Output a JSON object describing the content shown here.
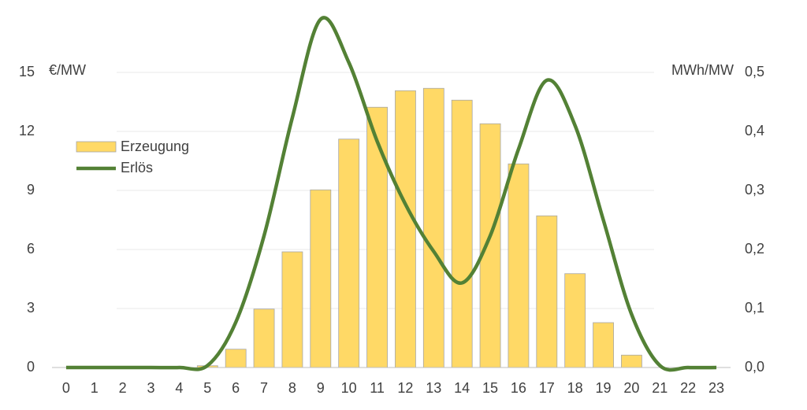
{
  "chart_data": {
    "type": "bar-line",
    "y_label": "€/MW",
    "y2_label": "MWh/MW",
    "categories": [
      "0",
      "1",
      "2",
      "3",
      "4",
      "5",
      "6",
      "7",
      "8",
      "9",
      "10",
      "11",
      "12",
      "13",
      "14",
      "15",
      "16",
      "17",
      "18",
      "19",
      "20",
      "21",
      "22",
      "23"
    ],
    "series": [
      {
        "name": "Erzeugung",
        "type": "bar",
        "axis": "y2",
        "color": "#ffd966",
        "values": [
          0,
          0,
          0,
          0,
          0,
          0.003,
          0.031,
          0.099,
          0.196,
          0.301,
          0.387,
          0.441,
          0.469,
          0.473,
          0.453,
          0.413,
          0.345,
          0.257,
          0.159,
          0.076,
          0.021,
          0,
          0,
          0
        ]
      },
      {
        "name": "Erlös",
        "type": "line",
        "color": "#538135",
        "values": [
          0,
          0,
          0,
          0,
          0,
          0.1,
          2.3,
          6.7,
          12.7,
          17.7,
          15.5,
          11.5,
          8.3,
          5.9,
          4.3,
          6.7,
          11.1,
          14.6,
          12.3,
          7.5,
          2.7,
          0.1,
          0,
          0
        ]
      }
    ],
    "ylim": [
      0,
      15
    ],
    "yticks": [
      0,
      3,
      6,
      9,
      12,
      15
    ],
    "y2lim": [
      0,
      0.5
    ],
    "y2ticks": [
      {
        "value": 0,
        "label": "0,0"
      },
      {
        "value": 0.1,
        "label": "0,1"
      },
      {
        "value": 0.2,
        "label": "0,2"
      },
      {
        "value": 0.3,
        "label": "0,3"
      },
      {
        "value": 0.4,
        "label": "0,4"
      },
      {
        "value": 0.5,
        "label": "0,5"
      }
    ],
    "grid": true,
    "legend": "upper-left"
  }
}
